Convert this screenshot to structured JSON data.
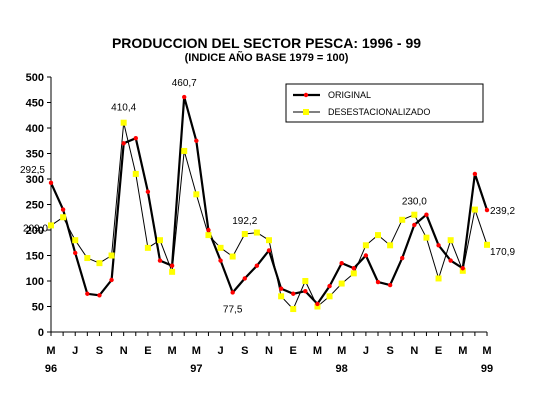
{
  "chart_data": {
    "type": "line",
    "title": "PRODUCCION DEL SECTOR PESCA: 1996 - 99",
    "subtitle": "(INDICE AÑO BASE 1979 = 100)",
    "ylim": [
      0,
      500
    ],
    "yticks": [
      0,
      50,
      100,
      150,
      200,
      250,
      300,
      350,
      400,
      450,
      500
    ],
    "grid": false,
    "legend_position": "top-right",
    "x_tick_labels": [
      {
        "i": 0,
        "month": "M",
        "year": "96"
      },
      {
        "i": 2,
        "month": "J",
        "year": ""
      },
      {
        "i": 4,
        "month": "S",
        "year": ""
      },
      {
        "i": 6,
        "month": "N",
        "year": ""
      },
      {
        "i": 8,
        "month": "E",
        "year": ""
      },
      {
        "i": 10,
        "month": "M",
        "year": ""
      },
      {
        "i": 12,
        "month": "M",
        "year": "97"
      },
      {
        "i": 14,
        "month": "J",
        "year": ""
      },
      {
        "i": 16,
        "month": "S",
        "year": ""
      },
      {
        "i": 18,
        "month": "N",
        "year": ""
      },
      {
        "i": 20,
        "month": "E",
        "year": ""
      },
      {
        "i": 22,
        "month": "M",
        "year": ""
      },
      {
        "i": 24,
        "month": "M",
        "year": "98"
      },
      {
        "i": 26,
        "month": "J",
        "year": ""
      },
      {
        "i": 28,
        "month": "S",
        "year": ""
      },
      {
        "i": 30,
        "month": "N",
        "year": ""
      },
      {
        "i": 32,
        "month": "E",
        "year": ""
      },
      {
        "i": 34,
        "month": "M",
        "year": ""
      },
      {
        "i": 36,
        "month": "M",
        "year": "99"
      }
    ],
    "series": [
      {
        "name": "ORIGINAL",
        "color": "#000000",
        "marker_color": "#ff0000",
        "values": [
          292.5,
          240,
          155,
          75,
          72,
          102,
          370,
          380,
          275,
          140,
          130,
          460.7,
          375,
          200,
          140,
          77.5,
          105,
          130,
          160,
          85,
          75,
          80,
          55,
          90,
          135,
          125,
          150,
          98,
          92,
          145,
          210,
          230,
          170,
          140,
          125,
          310,
          239.2
        ]
      },
      {
        "name": "DESESTACIONALIZADO",
        "color": "#000000",
        "marker_color": "#ffff00",
        "values": [
          209.0,
          225,
          180,
          145,
          135,
          150,
          410.4,
          310,
          165,
          180,
          118,
          355,
          270,
          190,
          165,
          148,
          192.2,
          195,
          180,
          70,
          45,
          100,
          50,
          70,
          95,
          115,
          170,
          190,
          170,
          220,
          230.0,
          185,
          105,
          180,
          120,
          240,
          170.9
        ]
      }
    ],
    "annotations": [
      {
        "text": "292,5",
        "series": 0,
        "i": 0
      },
      {
        "text": "209,0",
        "series": 1,
        "i": 0
      },
      {
        "text": "410,4",
        "series": 1,
        "i": 6
      },
      {
        "text": "460,7",
        "series": 0,
        "i": 11
      },
      {
        "text": "192,2",
        "series": 1,
        "i": 16
      },
      {
        "text": "77,5",
        "series": 0,
        "i": 15
      },
      {
        "text": "230,0",
        "series": 1,
        "i": 30
      },
      {
        "text": "239,2",
        "series": 0,
        "i": 36
      },
      {
        "text": "170,9",
        "series": 1,
        "i": 36
      }
    ]
  }
}
